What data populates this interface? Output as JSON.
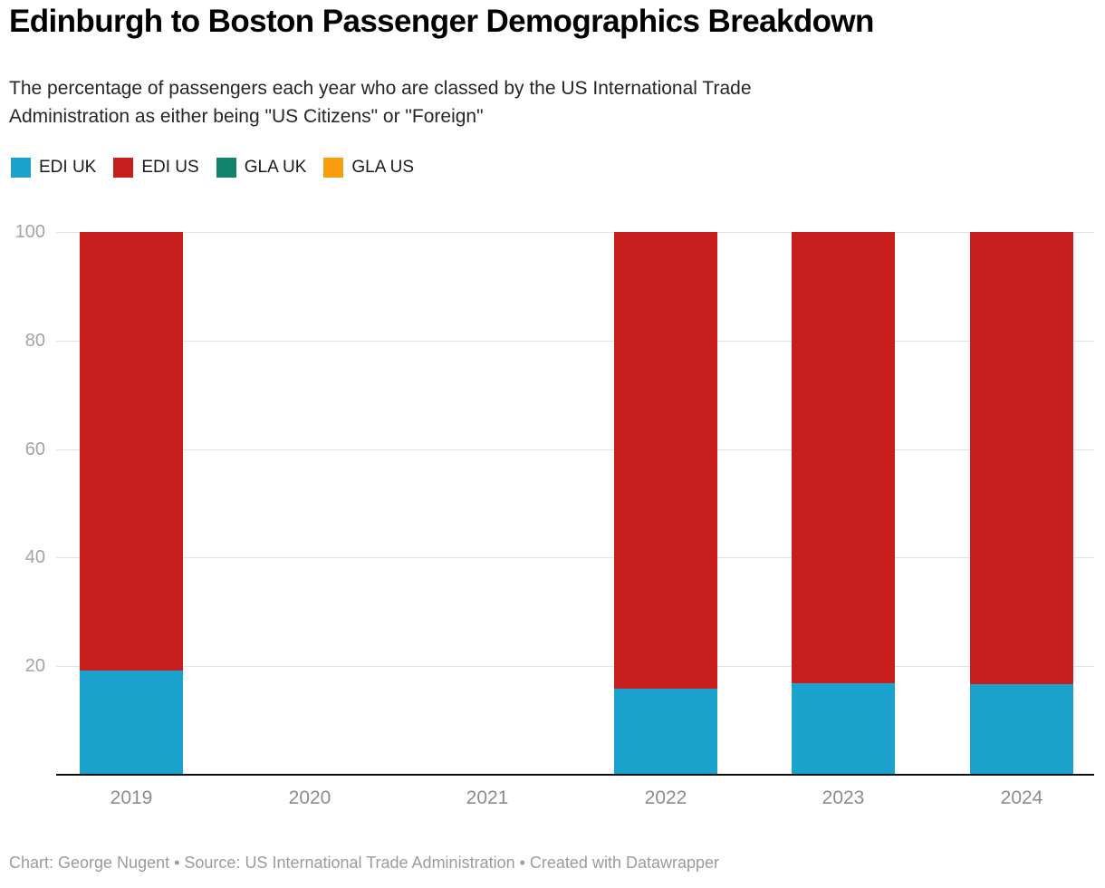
{
  "header": {
    "title": "Edinburgh to Boston Passenger Demographics Breakdown",
    "subtitle": "The percentage of passengers each year who are classed by the US International Trade\nAdministration as either being \"US Citizens\" or \"Foreign\""
  },
  "legend": {
    "items": [
      {
        "label": "EDI UK",
        "color": "#1BA3CD"
      },
      {
        "label": "EDI US",
        "color": "#C71E1D"
      },
      {
        "label": "GLA UK",
        "color": "#12846C"
      },
      {
        "label": "GLA US",
        "color": "#F99D0D"
      }
    ]
  },
  "chart_data": {
    "type": "bar",
    "stacked": true,
    "title": "Edinburgh to Boston Passenger Demographics Breakdown",
    "xlabel": "",
    "ylabel": "",
    "ylim": [
      0,
      100
    ],
    "yticks": [
      20,
      40,
      60,
      80,
      100
    ],
    "grid": true,
    "legend_position": "top",
    "categories": [
      "2019",
      "2020",
      "2021",
      "2022",
      "2023",
      "2024"
    ],
    "series": [
      {
        "name": "EDI UK",
        "color": "#1BA3CD",
        "values": [
          19.2,
          0,
          0,
          15.8,
          16.9,
          16.7
        ]
      },
      {
        "name": "EDI US",
        "color": "#C71E1D",
        "values": [
          80.8,
          0,
          0,
          84.2,
          83.1,
          83.3
        ]
      },
      {
        "name": "GLA UK",
        "color": "#12846C",
        "values": [
          0,
          0,
          0,
          0,
          0,
          0
        ]
      },
      {
        "name": "GLA US",
        "color": "#F99D0D",
        "values": [
          0,
          0,
          0,
          0,
          0,
          0
        ]
      }
    ]
  },
  "colors": {
    "grid": "#e2e2e2",
    "axis_line": "#0f0f0f",
    "y_tick_text": "#a4a4a4",
    "x_tick_text": "#8c8c8c",
    "footer_text": "#9b9b9b"
  },
  "footer": {
    "text": "Chart: George Nugent • Source: US International Trade Administration • Created with Datawrapper"
  }
}
